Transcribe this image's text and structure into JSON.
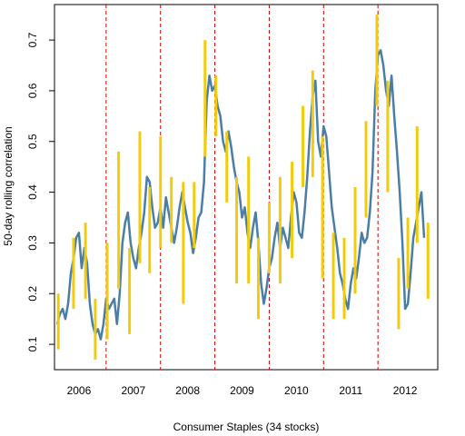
{
  "chart_data": {
    "type": "line",
    "xlabel": "Consumer Staples (34 stocks)",
    "ylabel": "50-day rolling correlation",
    "x_tick_labels": [
      "2006",
      "2007",
      "2008",
      "2009",
      "2010",
      "2011",
      "2012"
    ],
    "y_ticks": [
      0.1,
      0.2,
      0.3,
      0.4,
      0.5,
      0.6,
      0.7
    ],
    "ylim": [
      0.05,
      0.77
    ],
    "xlim": [
      2005.55,
      2012.6
    ],
    "grid": false,
    "year_boundaries": [
      2006.5,
      2007.5,
      2008.5,
      2009.5,
      2010.5,
      2011.5
    ],
    "colors": {
      "line": "#4a7ea6",
      "range_bars": "#f2cc0c",
      "boundary": "#cc0000"
    },
    "series": [
      {
        "x": [
          2005.6,
          2005.65,
          2005.7,
          2005.75,
          2005.8,
          2005.85,
          2005.9,
          2005.95,
          2006.0,
          2006.05,
          2006.1,
          2006.15,
          2006.2,
          2006.25,
          2006.3,
          2006.35,
          2006.4,
          2006.45,
          2006.5,
          2006.55,
          2006.6,
          2006.65,
          2006.7,
          2006.75,
          2006.8,
          2006.85,
          2006.9,
          2006.95,
          2007.0,
          2007.05,
          2007.1,
          2007.15,
          2007.2,
          2007.25,
          2007.3,
          2007.35,
          2007.4,
          2007.45,
          2007.5,
          2007.55,
          2007.6,
          2007.65,
          2007.7,
          2007.75,
          2007.8,
          2007.85,
          2007.9,
          2007.95,
          2008.0,
          2008.05,
          2008.1,
          2008.15,
          2008.2,
          2008.25,
          2008.3,
          2008.35,
          2008.4,
          2008.45,
          2008.5,
          2008.55,
          2008.6,
          2008.65,
          2008.7,
          2008.75,
          2008.8,
          2008.85,
          2008.9,
          2008.95,
          2009.0,
          2009.05,
          2009.1,
          2009.15,
          2009.2,
          2009.25,
          2009.3,
          2009.35,
          2009.4,
          2009.45,
          2009.5,
          2009.55,
          2009.6,
          2009.65,
          2009.7,
          2009.75,
          2009.8,
          2009.85,
          2009.9,
          2009.95,
          2010.0,
          2010.05,
          2010.1,
          2010.15,
          2010.2,
          2010.25,
          2010.3,
          2010.35,
          2010.4,
          2010.45,
          2010.5,
          2010.55,
          2010.6,
          2010.65,
          2010.7,
          2010.75,
          2010.8,
          2010.85,
          2010.9,
          2010.95,
          2011.0,
          2011.05,
          2011.1,
          2011.15,
          2011.2,
          2011.25,
          2011.3,
          2011.35,
          2011.4,
          2011.45,
          2011.5,
          2011.55,
          2011.6,
          2011.65,
          2011.7,
          2011.75,
          2011.8,
          2011.85,
          2011.9,
          2011.95,
          2012.0,
          2012.05,
          2012.1,
          2012.15,
          2012.2,
          2012.25,
          2012.3,
          2012.35
        ],
        "y": [
          0.14,
          0.16,
          0.17,
          0.15,
          0.18,
          0.24,
          0.27,
          0.31,
          0.32,
          0.25,
          0.29,
          0.26,
          0.18,
          0.14,
          0.12,
          0.13,
          0.11,
          0.14,
          0.19,
          0.17,
          0.18,
          0.19,
          0.14,
          0.2,
          0.3,
          0.34,
          0.36,
          0.3,
          0.27,
          0.25,
          0.29,
          0.32,
          0.36,
          0.43,
          0.42,
          0.37,
          0.33,
          0.34,
          0.37,
          0.33,
          0.39,
          0.36,
          0.33,
          0.3,
          0.33,
          0.37,
          0.4,
          0.37,
          0.34,
          0.32,
          0.28,
          0.31,
          0.35,
          0.36,
          0.42,
          0.58,
          0.63,
          0.6,
          0.61,
          0.57,
          0.55,
          0.5,
          0.48,
          0.52,
          0.49,
          0.45,
          0.42,
          0.4,
          0.35,
          0.37,
          0.32,
          0.29,
          0.33,
          0.36,
          0.3,
          0.22,
          0.18,
          0.21,
          0.25,
          0.27,
          0.31,
          0.34,
          0.29,
          0.33,
          0.31,
          0.29,
          0.35,
          0.4,
          0.38,
          0.32,
          0.31,
          0.36,
          0.43,
          0.52,
          0.59,
          0.62,
          0.5,
          0.47,
          0.53,
          0.51,
          0.44,
          0.37,
          0.33,
          0.29,
          0.24,
          0.22,
          0.19,
          0.17,
          0.22,
          0.25,
          0.23,
          0.27,
          0.32,
          0.3,
          0.31,
          0.36,
          0.44,
          0.6,
          0.67,
          0.68,
          0.65,
          0.6,
          0.57,
          0.63,
          0.55,
          0.48,
          0.4,
          0.3,
          0.17,
          0.18,
          0.24,
          0.31,
          0.34,
          0.37,
          0.4,
          0.31
        ]
      }
    ],
    "range_bars": [
      {
        "x": 2005.62,
        "low": 0.09,
        "high": 0.2
      },
      {
        "x": 2005.9,
        "low": 0.17,
        "high": 0.31
      },
      {
        "x": 2006.12,
        "low": 0.19,
        "high": 0.34
      },
      {
        "x": 2006.3,
        "low": 0.07,
        "high": 0.19
      },
      {
        "x": 2006.52,
        "low": 0.11,
        "high": 0.3
      },
      {
        "x": 2006.73,
        "low": 0.21,
        "high": 0.48
      },
      {
        "x": 2006.93,
        "low": 0.12,
        "high": 0.29
      },
      {
        "x": 2007.12,
        "low": 0.26,
        "high": 0.52
      },
      {
        "x": 2007.3,
        "low": 0.24,
        "high": 0.41
      },
      {
        "x": 2007.5,
        "low": 0.29,
        "high": 0.51
      },
      {
        "x": 2007.7,
        "low": 0.3,
        "high": 0.43
      },
      {
        "x": 2007.92,
        "low": 0.18,
        "high": 0.42
      },
      {
        "x": 2008.12,
        "low": 0.29,
        "high": 0.42
      },
      {
        "x": 2008.32,
        "low": 0.47,
        "high": 0.7
      },
      {
        "x": 2008.52,
        "low": 0.51,
        "high": 0.63
      },
      {
        "x": 2008.72,
        "low": 0.38,
        "high": 0.52
      },
      {
        "x": 2008.9,
        "low": 0.22,
        "high": 0.43
      },
      {
        "x": 2009.12,
        "low": 0.22,
        "high": 0.47
      },
      {
        "x": 2009.3,
        "low": 0.15,
        "high": 0.31
      },
      {
        "x": 2009.5,
        "low": 0.24,
        "high": 0.38
      },
      {
        "x": 2009.7,
        "low": 0.22,
        "high": 0.43
      },
      {
        "x": 2009.92,
        "low": 0.27,
        "high": 0.46
      },
      {
        "x": 2010.12,
        "low": 0.41,
        "high": 0.57
      },
      {
        "x": 2010.3,
        "low": 0.43,
        "high": 0.64
      },
      {
        "x": 2010.48,
        "low": 0.23,
        "high": 0.51
      },
      {
        "x": 2010.68,
        "low": 0.15,
        "high": 0.32
      },
      {
        "x": 2010.88,
        "low": 0.15,
        "high": 0.31
      },
      {
        "x": 2011.08,
        "low": 0.2,
        "high": 0.41
      },
      {
        "x": 2011.28,
        "low": 0.35,
        "high": 0.54
      },
      {
        "x": 2011.48,
        "low": 0.57,
        "high": 0.75
      },
      {
        "x": 2011.68,
        "low": 0.4,
        "high": 0.62
      },
      {
        "x": 2011.88,
        "low": 0.13,
        "high": 0.27
      },
      {
        "x": 2012.05,
        "low": 0.21,
        "high": 0.35
      },
      {
        "x": 2012.22,
        "low": 0.3,
        "high": 0.53
      },
      {
        "x": 2012.42,
        "low": 0.19,
        "high": 0.34
      }
    ]
  }
}
